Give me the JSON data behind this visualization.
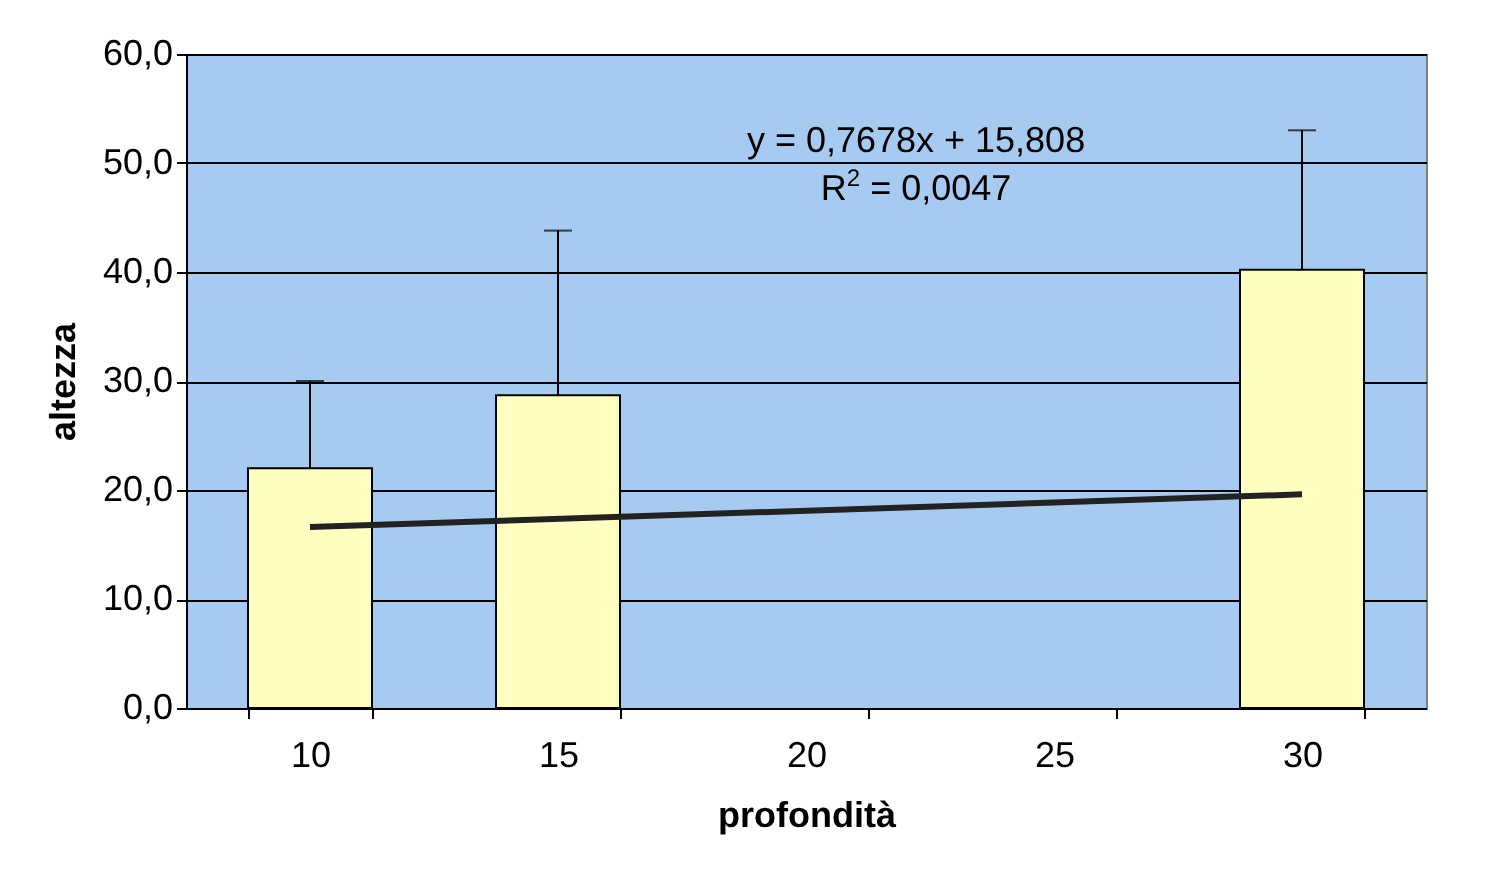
{
  "chart_data": {
    "type": "bar",
    "xlabel": "profondità",
    "ylabel": "altezza",
    "categories": [
      "10",
      "15",
      "20",
      "25",
      "30"
    ],
    "series": [
      {
        "color": "#ffffc0",
        "values": [
          22.0,
          28.7,
          null,
          null,
          40.2
        ],
        "errors": [
          [
            22.0,
            30.0
          ],
          [
            28.7,
            43.8
          ],
          null,
          null,
          [
            40.2,
            53.0
          ]
        ]
      },
      {
        "type": "line",
        "color": "#222222",
        "x": [
          "10",
          "30"
        ],
        "values": [
          16.6,
          19.6
        ]
      }
    ],
    "ylim": [
      0,
      60
    ],
    "yticks": [
      {
        "value": 0,
        "label": "0,0"
      },
      {
        "value": 10,
        "label": "10,0"
      },
      {
        "value": 20,
        "label": "20,0"
      },
      {
        "value": 30,
        "label": "30,0"
      },
      {
        "value": 40,
        "label": "40,0"
      },
      {
        "value": 50,
        "label": "50,0"
      },
      {
        "value": 60,
        "label": "60,0"
      }
    ],
    "grid": "y",
    "annotations": [
      "y = 0,7678x + 15,808",
      "R$^{2}$ = 0,0047"
    ]
  }
}
